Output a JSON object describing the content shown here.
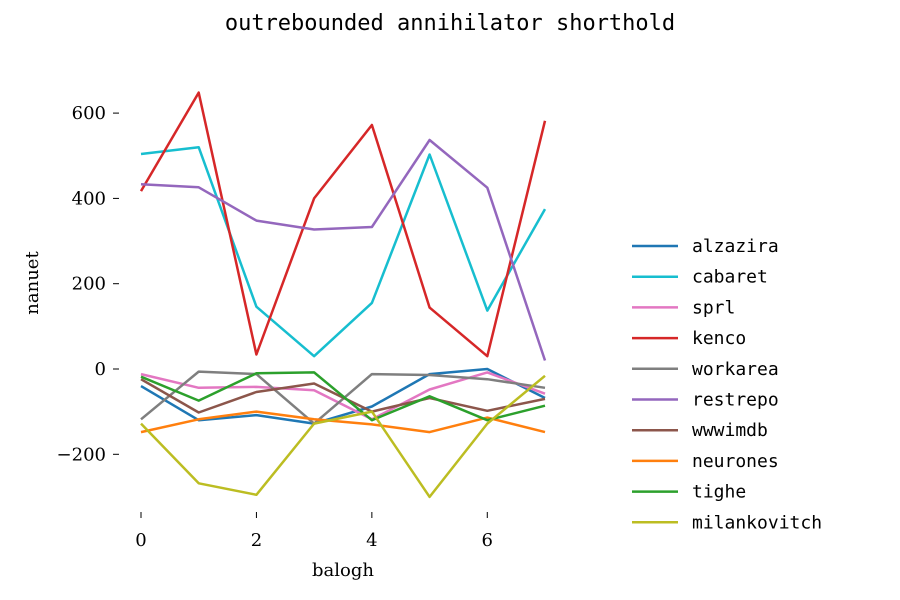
{
  "chart_data": {
    "type": "line",
    "title": "outrebounded annihilator shorthold",
    "xlabel": "balogh",
    "ylabel": "nanuet",
    "xlim": [
      0,
      7
    ],
    "ylim": [
      -330,
      660
    ],
    "x": [
      0,
      1,
      2,
      3,
      4,
      5,
      6,
      7
    ],
    "x_ticks": [
      0,
      2,
      4,
      6
    ],
    "y_ticks": [
      -200,
      0,
      200,
      400,
      600
    ],
    "y_tick_labels": [
      "−200",
      "0",
      "200",
      "400",
      "600"
    ],
    "grid": false,
    "legend_position": "right",
    "series": [
      {
        "name": "alzazira",
        "color": "#1f77b4",
        "values": [
          -40,
          -120,
          -108,
          -128,
          -88,
          -12,
          0,
          -68
        ]
      },
      {
        "name": "cabaret",
        "color": "#17becf",
        "values": [
          504,
          520,
          146,
          30,
          155,
          503,
          137,
          375
        ]
      },
      {
        "name": "sprl",
        "color": "#e377c2",
        "values": [
          -12,
          -44,
          -42,
          -50,
          -118,
          -48,
          -8,
          -58
        ]
      },
      {
        "name": "kenco",
        "color": "#d62728",
        "values": [
          417,
          648,
          34,
          400,
          572,
          144,
          30,
          582
        ]
      },
      {
        "name": "workarea",
        "color": "#7f7f7f",
        "values": [
          -118,
          -6,
          -12,
          -128,
          -12,
          -14,
          -24,
          -44
        ]
      },
      {
        "name": "restrepo",
        "color": "#9467bd",
        "values": [
          433,
          426,
          348,
          327,
          333,
          537,
          425,
          20
        ]
      },
      {
        "name": "wwwimdb",
        "color": "#8c564b",
        "values": [
          -24,
          -102,
          -54,
          -34,
          -100,
          -68,
          -98,
          -70
        ]
      },
      {
        "name": "neurones",
        "color": "#ff7f0e",
        "values": [
          -148,
          -118,
          -100,
          -118,
          -130,
          -148,
          -114,
          -148
        ]
      },
      {
        "name": "tighe",
        "color": "#2ca02c",
        "values": [
          -18,
          -74,
          -10,
          -8,
          -120,
          -64,
          -120,
          -86
        ]
      },
      {
        "name": "milankovitch",
        "color": "#bcbd22",
        "values": [
          -128,
          -268,
          -295,
          -128,
          -100,
          -300,
          -128,
          -16
        ]
      }
    ]
  }
}
